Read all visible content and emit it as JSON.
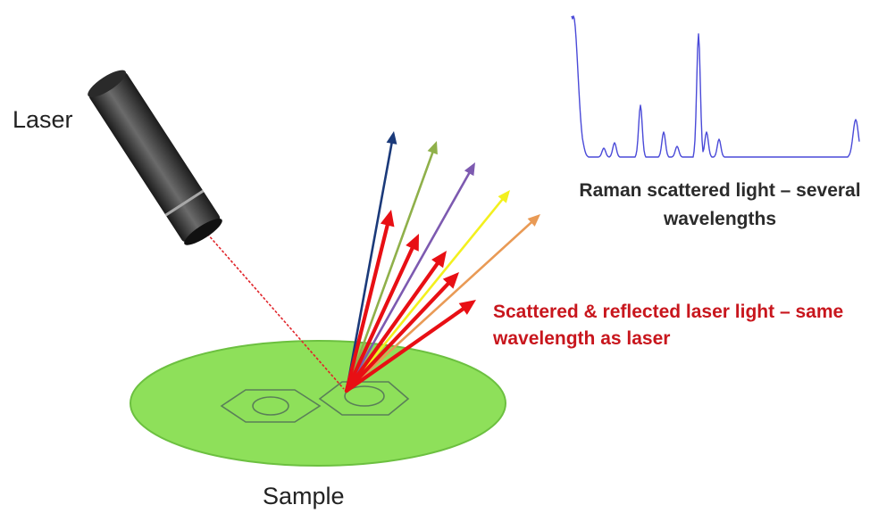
{
  "labels": {
    "laser": "Laser",
    "sample": "Sample",
    "raman_caption_line1": "Raman scattered light – several",
    "raman_caption_line2": "wavelengths",
    "scatter_caption_line1": "Scattered & reflected laser light – same",
    "scatter_caption_line2": "wavelength as laser"
  },
  "colors": {
    "laser_beam": "#e0242a",
    "sample_disk": "#8ee05a",
    "sample_disk_edge": "#6cc040",
    "rayleigh_arrows": "#e80f14",
    "spectrum_line": "#4a4ad8",
    "raman_arrows": [
      "#1b3a7a",
      "#8fb04a",
      "#7d5ab0",
      "#f3f01e",
      "#e99a55"
    ]
  },
  "raman_arrow_colors_order": [
    "dark-blue",
    "olive-green",
    "purple",
    "yellow",
    "orange"
  ]
}
